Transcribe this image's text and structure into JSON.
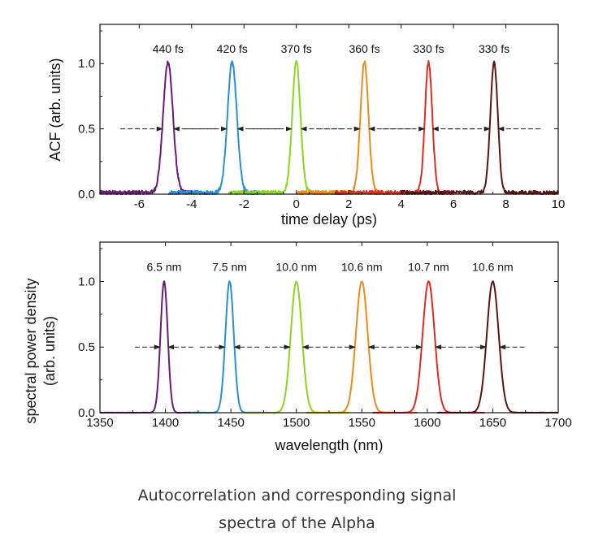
{
  "caption": {
    "line1": "Autocorrelation and corresponding signal",
    "line2": "spectra of the Alpha"
  },
  "chart_data": [
    {
      "type": "line",
      "xlabel": "time delay (ps)",
      "ylabel": "ACF (arb. units)",
      "xlim": [
        -7.5,
        10
      ],
      "ylim": [
        0,
        1.3
      ],
      "xticks": [
        -6,
        -4,
        -2,
        0,
        2,
        4,
        6,
        8,
        10
      ],
      "yticks": [
        0.0,
        0.5,
        1.0
      ],
      "x_tick_labels": [
        "-6",
        "-4",
        "-2",
        "0",
        "2",
        "4",
        "6",
        "8",
        "10"
      ],
      "y_tick_labels": [
        "0.0",
        "0.5",
        "1.0"
      ],
      "grid": false,
      "legend": "none",
      "half_max_arrows": true,
      "series": [
        {
          "color": "#6b1a78",
          "center": -4.9,
          "fwhm_ps": 0.44,
          "baseline_range": [
            -7.5,
            -4.0
          ],
          "label": "440 fs"
        },
        {
          "color": "#2b8fd6",
          "center": -2.45,
          "fwhm_ps": 0.42,
          "baseline_range": [
            -4.9,
            -1.4
          ],
          "label": "420 fs"
        },
        {
          "color": "#8bd61e",
          "center": 0.0,
          "fwhm_ps": 0.37,
          "baseline_range": [
            -2.6,
            2.2
          ],
          "label": "370 fs"
        },
        {
          "color": "#ef8a1a",
          "center": 2.6,
          "fwhm_ps": 0.36,
          "baseline_range": [
            0.0,
            3.4
          ],
          "label": "360 fs"
        },
        {
          "color": "#e02a22",
          "center": 5.05,
          "fwhm_ps": 0.33,
          "baseline_range": [
            1.5,
            6.0
          ],
          "label": "330 fs"
        },
        {
          "color": "#5a1414",
          "center": 7.55,
          "fwhm_ps": 0.33,
          "baseline_range": [
            4.0,
            10.0
          ],
          "label": "330 fs"
        }
      ]
    },
    {
      "type": "line",
      "xlabel": "wavelength (nm)",
      "ylabel_line1": "spectral power density",
      "ylabel_line2": "(arb. units)",
      "xlim": [
        1350,
        1700
      ],
      "ylim": [
        0,
        1.3
      ],
      "xticks": [
        1350,
        1400,
        1450,
        1500,
        1550,
        1600,
        1650,
        1700
      ],
      "yticks": [
        0.0,
        0.5,
        1.0
      ],
      "x_tick_labels": [
        "1350",
        "1400",
        "1450",
        "1500",
        "1550",
        "1600",
        "1650",
        "1700"
      ],
      "y_tick_labels": [
        "0.0",
        "0.5",
        "1.0"
      ],
      "grid": false,
      "legend": "none",
      "half_max_arrows": true,
      "series": [
        {
          "color": "#6b1a78",
          "center": 1399,
          "fwhm_nm": 6.5,
          "label": "6.5 nm"
        },
        {
          "color": "#2b8fd6",
          "center": 1449,
          "fwhm_nm": 7.5,
          "label": "7.5 nm"
        },
        {
          "color": "#8bd61e",
          "center": 1500,
          "fwhm_nm": 10.0,
          "label": "10.0 nm"
        },
        {
          "color": "#ef8a1a",
          "center": 1550,
          "fwhm_nm": 10.6,
          "label": "10.6 nm"
        },
        {
          "color": "#e02a22",
          "center": 1601,
          "fwhm_nm": 10.7,
          "label": "10.7 nm"
        },
        {
          "color": "#5a1414",
          "center": 1650,
          "fwhm_nm": 10.6,
          "label": "10.6 nm"
        }
      ]
    }
  ]
}
